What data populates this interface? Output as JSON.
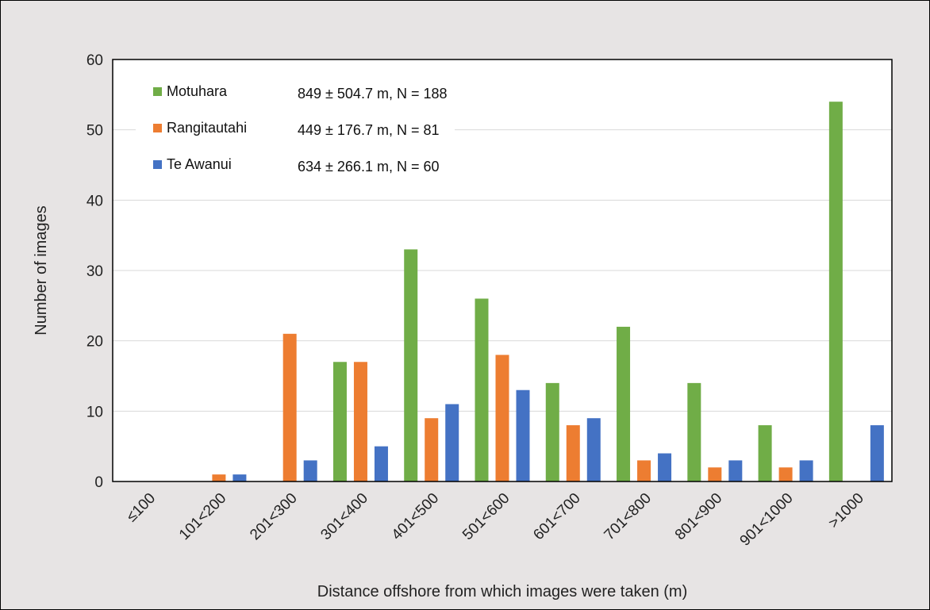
{
  "chart_data": {
    "type": "bar",
    "title": "",
    "xlabel": "Distance offshore from which images were taken (m)",
    "ylabel": "Number of images",
    "ylim": [
      0,
      60
    ],
    "yticks": [
      0,
      10,
      20,
      30,
      40,
      50,
      60
    ],
    "grid": true,
    "legend_position": "top-left",
    "categories": [
      "≤100",
      "101<200",
      "201<300",
      "301<400",
      "401<500",
      "501<600",
      "601<700",
      "701<800",
      "801<900",
      "901<1000",
      ">1000"
    ],
    "series": [
      {
        "name": "Motuhara",
        "stat": "849 ± 504.7 m, N = 188",
        "color": "#70ad47",
        "values": [
          0,
          0,
          0,
          17,
          33,
          26,
          14,
          22,
          14,
          8,
          54
        ]
      },
      {
        "name": "Rangitautahi",
        "stat": "449 ± 176.7 m, N = 81",
        "color": "#ed7d31",
        "values": [
          0,
          1,
          21,
          17,
          9,
          18,
          8,
          3,
          2,
          2,
          0
        ]
      },
      {
        "name": "Te Awanui",
        "stat": "634 ± 266.1 m, N = 60",
        "color": "#4472c4",
        "values": [
          0,
          1,
          3,
          5,
          11,
          13,
          9,
          4,
          3,
          3,
          8
        ]
      }
    ]
  }
}
